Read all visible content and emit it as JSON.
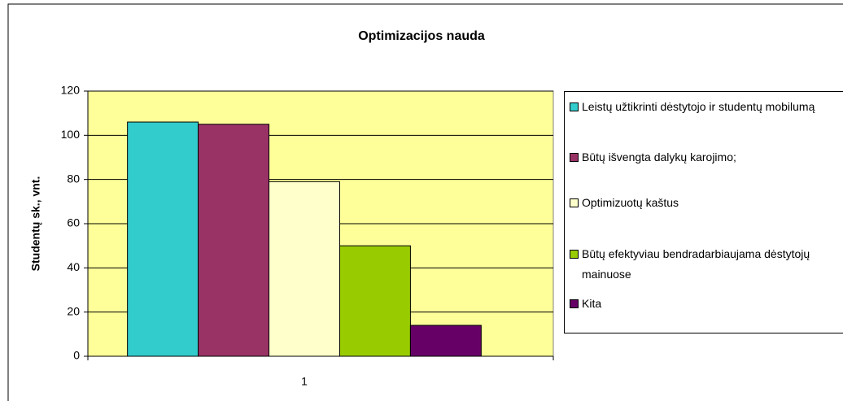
{
  "chart_data": {
    "type": "bar",
    "title": "Optimizacijos nauda",
    "y_label": "Studentų sk., vnt.",
    "categories": [
      "1"
    ],
    "series": [
      {
        "name": "Leistų užtikrinti dėstytojo ir studentų mobilumą",
        "color": "#33CCCC",
        "values": [
          106
        ]
      },
      {
        "name": "Būtų išvengta dalykų karojimo;",
        "color": "#993366",
        "values": [
          105
        ]
      },
      {
        "name": "Optimizuotų kaštus",
        "color": "#FFFFCC",
        "values": [
          79
        ]
      },
      {
        "name": "Būtų efektyviau bendradarbiaujama dėstytojų mainuose",
        "color": "#99CC00",
        "values": [
          50
        ]
      },
      {
        "name": "Kita",
        "color": "#660066",
        "values": [
          14
        ]
      }
    ],
    "ylim": [
      0,
      120
    ],
    "yticks": [
      0,
      20,
      40,
      60,
      80,
      100,
      120
    ],
    "grid": true,
    "legend": "right"
  }
}
